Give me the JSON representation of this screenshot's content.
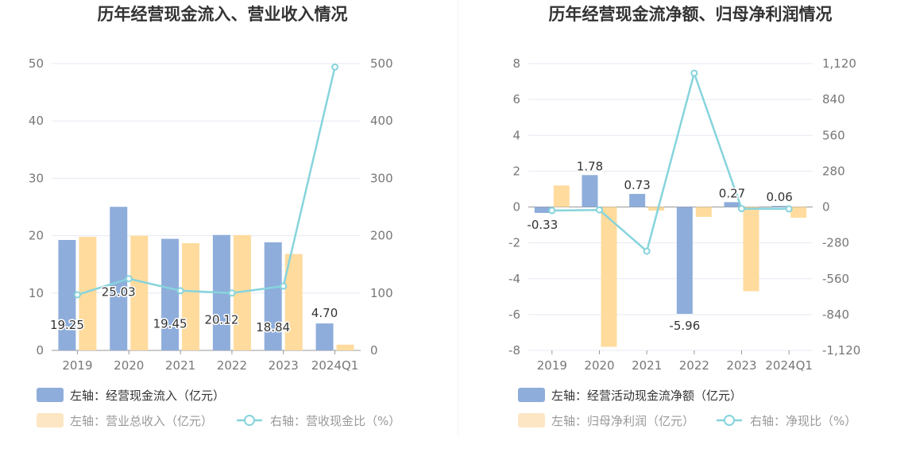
{
  "colors": {
    "bar_primary": "#8eaddb",
    "bar_secondary": "#ffdb9e",
    "line": "#86d4dc",
    "grid": "#e6e9f3",
    "axis": "#999999",
    "title": "#333333",
    "legend_active": "#333333",
    "legend_inactive": "#999999"
  },
  "chart_data": [
    {
      "type": "bar",
      "title": "历年经营现金流入、营业收入情况",
      "categories": [
        "2019",
        "2020",
        "2021",
        "2022",
        "2023",
        "2024Q1"
      ],
      "y_left": {
        "ticks": [
          "0",
          "10",
          "20",
          "30",
          "40",
          "50"
        ],
        "range": [
          0,
          50
        ]
      },
      "y_right": {
        "ticks": [
          "0",
          "100",
          "200",
          "300",
          "400",
          "500"
        ],
        "range": [
          0,
          500
        ]
      },
      "grid": true,
      "legend_placement": "bottom-left",
      "series": [
        {
          "name": "左轴：经营现金流入（亿元）",
          "type": "bar",
          "axis": "left",
          "values": [
            19.25,
            25.03,
            19.45,
            20.12,
            18.84,
            4.7
          ],
          "labels": [
            "19.25",
            "25.03",
            "19.45",
            "20.12",
            "18.84",
            "4.70"
          ]
        },
        {
          "name": "左轴：营业总收入（亿元）",
          "type": "bar",
          "axis": "left",
          "values": [
            19.8,
            20.0,
            18.7,
            20.1,
            16.8,
            1.0
          ]
        },
        {
          "name": "右轴：营收现金比（%）",
          "type": "line",
          "axis": "right",
          "values": [
            97,
            125,
            104,
            100,
            112,
            494
          ]
        }
      ]
    },
    {
      "type": "bar",
      "title": "历年经营现金流净额、归母净利润情况",
      "categories": [
        "2019",
        "2020",
        "2021",
        "2022",
        "2023",
        "2024Q1"
      ],
      "y_left": {
        "ticks": [
          "-8",
          "-6",
          "-4",
          "-2",
          "0",
          "2",
          "4",
          "6",
          "8"
        ],
        "range": [
          -8,
          8
        ]
      },
      "y_right": {
        "ticks": [
          "-1,120",
          "-840",
          "-560",
          "-280",
          "0",
          "280",
          "560",
          "840",
          "1,120"
        ],
        "range": [
          -1120,
          1120
        ]
      },
      "grid": true,
      "legend_placement": "bottom-left",
      "series": [
        {
          "name": "左轴：经营活动现金流净额（亿元）",
          "type": "bar",
          "axis": "left",
          "values": [
            -0.33,
            1.78,
            0.73,
            -5.96,
            0.27,
            0.06
          ],
          "labels": [
            "-0.33",
            "1.78",
            "0.73",
            "-5.96",
            "0.27",
            "0.06"
          ]
        },
        {
          "name": "左轴：归母净利润（亿元）",
          "type": "bar",
          "axis": "left",
          "values": [
            1.2,
            -7.8,
            -0.2,
            -0.55,
            -4.7,
            -0.6
          ]
        },
        {
          "name": "右轴：净现比（%）",
          "type": "line",
          "axis": "right",
          "values": [
            -28,
            -23,
            -345,
            1045,
            -13,
            -15
          ]
        }
      ]
    }
  ]
}
